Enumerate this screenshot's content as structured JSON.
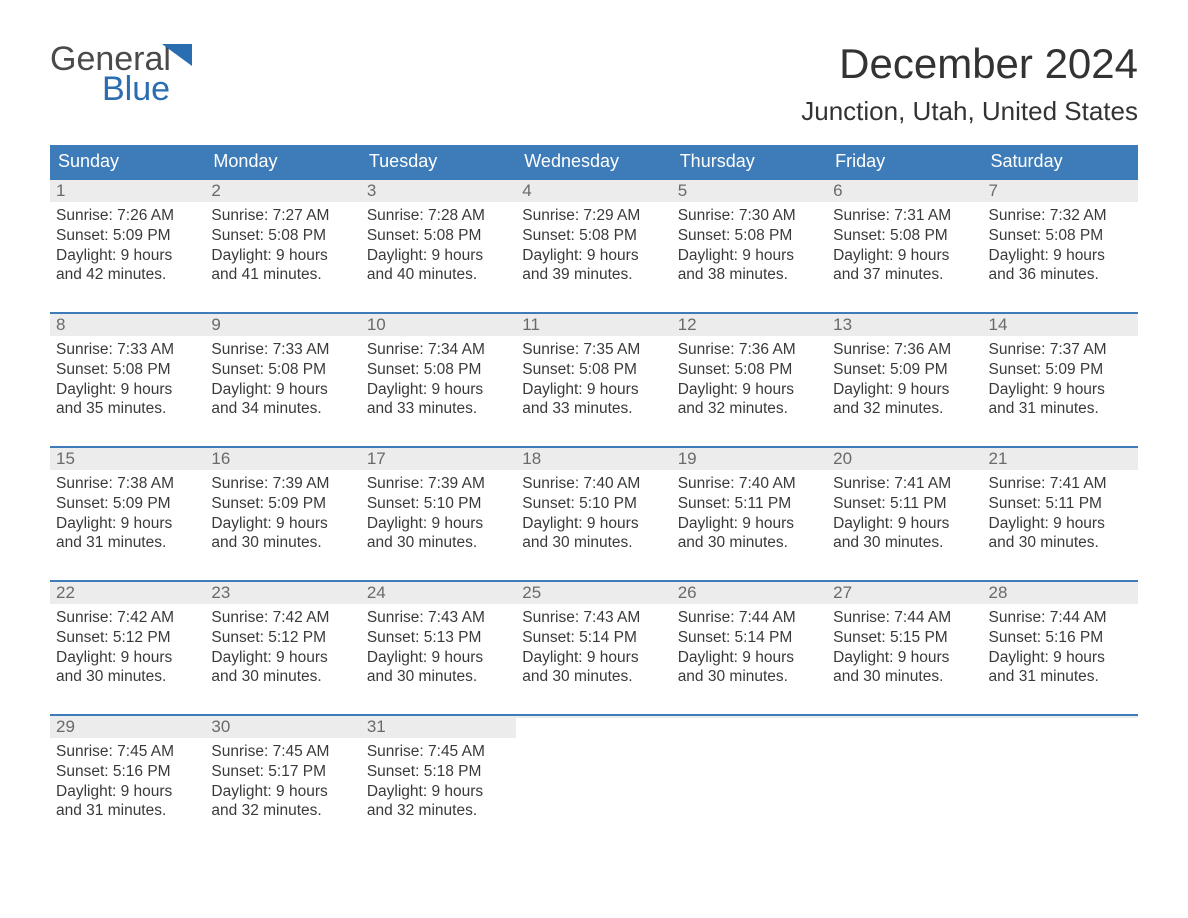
{
  "brand": {
    "part1": "General",
    "part2": "Blue",
    "icon_color": "#2a6db0"
  },
  "title": "December 2024",
  "location": "Junction, Utah, United States",
  "colors": {
    "header_bg": "#3d7cb8",
    "header_text": "#ffffff",
    "daynum_bg": "#ececec",
    "week_border": "#3d7cb8",
    "body_text": "#3a3a3a",
    "logo_blue": "#2a6db0"
  },
  "daysOfWeek": [
    "Sunday",
    "Monday",
    "Tuesday",
    "Wednesday",
    "Thursday",
    "Friday",
    "Saturday"
  ],
  "weeks": [
    [
      {
        "n": "1",
        "sunrise": "Sunrise: 7:26 AM",
        "sunset": "Sunset: 5:09 PM",
        "d1": "Daylight: 9 hours",
        "d2": "and 42 minutes."
      },
      {
        "n": "2",
        "sunrise": "Sunrise: 7:27 AM",
        "sunset": "Sunset: 5:08 PM",
        "d1": "Daylight: 9 hours",
        "d2": "and 41 minutes."
      },
      {
        "n": "3",
        "sunrise": "Sunrise: 7:28 AM",
        "sunset": "Sunset: 5:08 PM",
        "d1": "Daylight: 9 hours",
        "d2": "and 40 minutes."
      },
      {
        "n": "4",
        "sunrise": "Sunrise: 7:29 AM",
        "sunset": "Sunset: 5:08 PM",
        "d1": "Daylight: 9 hours",
        "d2": "and 39 minutes."
      },
      {
        "n": "5",
        "sunrise": "Sunrise: 7:30 AM",
        "sunset": "Sunset: 5:08 PM",
        "d1": "Daylight: 9 hours",
        "d2": "and 38 minutes."
      },
      {
        "n": "6",
        "sunrise": "Sunrise: 7:31 AM",
        "sunset": "Sunset: 5:08 PM",
        "d1": "Daylight: 9 hours",
        "d2": "and 37 minutes."
      },
      {
        "n": "7",
        "sunrise": "Sunrise: 7:32 AM",
        "sunset": "Sunset: 5:08 PM",
        "d1": "Daylight: 9 hours",
        "d2": "and 36 minutes."
      }
    ],
    [
      {
        "n": "8",
        "sunrise": "Sunrise: 7:33 AM",
        "sunset": "Sunset: 5:08 PM",
        "d1": "Daylight: 9 hours",
        "d2": "and 35 minutes."
      },
      {
        "n": "9",
        "sunrise": "Sunrise: 7:33 AM",
        "sunset": "Sunset: 5:08 PM",
        "d1": "Daylight: 9 hours",
        "d2": "and 34 minutes."
      },
      {
        "n": "10",
        "sunrise": "Sunrise: 7:34 AM",
        "sunset": "Sunset: 5:08 PM",
        "d1": "Daylight: 9 hours",
        "d2": "and 33 minutes."
      },
      {
        "n": "11",
        "sunrise": "Sunrise: 7:35 AM",
        "sunset": "Sunset: 5:08 PM",
        "d1": "Daylight: 9 hours",
        "d2": "and 33 minutes."
      },
      {
        "n": "12",
        "sunrise": "Sunrise: 7:36 AM",
        "sunset": "Sunset: 5:08 PM",
        "d1": "Daylight: 9 hours",
        "d2": "and 32 minutes."
      },
      {
        "n": "13",
        "sunrise": "Sunrise: 7:36 AM",
        "sunset": "Sunset: 5:09 PM",
        "d1": "Daylight: 9 hours",
        "d2": "and 32 minutes."
      },
      {
        "n": "14",
        "sunrise": "Sunrise: 7:37 AM",
        "sunset": "Sunset: 5:09 PM",
        "d1": "Daylight: 9 hours",
        "d2": "and 31 minutes."
      }
    ],
    [
      {
        "n": "15",
        "sunrise": "Sunrise: 7:38 AM",
        "sunset": "Sunset: 5:09 PM",
        "d1": "Daylight: 9 hours",
        "d2": "and 31 minutes."
      },
      {
        "n": "16",
        "sunrise": "Sunrise: 7:39 AM",
        "sunset": "Sunset: 5:09 PM",
        "d1": "Daylight: 9 hours",
        "d2": "and 30 minutes."
      },
      {
        "n": "17",
        "sunrise": "Sunrise: 7:39 AM",
        "sunset": "Sunset: 5:10 PM",
        "d1": "Daylight: 9 hours",
        "d2": "and 30 minutes."
      },
      {
        "n": "18",
        "sunrise": "Sunrise: 7:40 AM",
        "sunset": "Sunset: 5:10 PM",
        "d1": "Daylight: 9 hours",
        "d2": "and 30 minutes."
      },
      {
        "n": "19",
        "sunrise": "Sunrise: 7:40 AM",
        "sunset": "Sunset: 5:11 PM",
        "d1": "Daylight: 9 hours",
        "d2": "and 30 minutes."
      },
      {
        "n": "20",
        "sunrise": "Sunrise: 7:41 AM",
        "sunset": "Sunset: 5:11 PM",
        "d1": "Daylight: 9 hours",
        "d2": "and 30 minutes."
      },
      {
        "n": "21",
        "sunrise": "Sunrise: 7:41 AM",
        "sunset": "Sunset: 5:11 PM",
        "d1": "Daylight: 9 hours",
        "d2": "and 30 minutes."
      }
    ],
    [
      {
        "n": "22",
        "sunrise": "Sunrise: 7:42 AM",
        "sunset": "Sunset: 5:12 PM",
        "d1": "Daylight: 9 hours",
        "d2": "and 30 minutes."
      },
      {
        "n": "23",
        "sunrise": "Sunrise: 7:42 AM",
        "sunset": "Sunset: 5:12 PM",
        "d1": "Daylight: 9 hours",
        "d2": "and 30 minutes."
      },
      {
        "n": "24",
        "sunrise": "Sunrise: 7:43 AM",
        "sunset": "Sunset: 5:13 PM",
        "d1": "Daylight: 9 hours",
        "d2": "and 30 minutes."
      },
      {
        "n": "25",
        "sunrise": "Sunrise: 7:43 AM",
        "sunset": "Sunset: 5:14 PM",
        "d1": "Daylight: 9 hours",
        "d2": "and 30 minutes."
      },
      {
        "n": "26",
        "sunrise": "Sunrise: 7:44 AM",
        "sunset": "Sunset: 5:14 PM",
        "d1": "Daylight: 9 hours",
        "d2": "and 30 minutes."
      },
      {
        "n": "27",
        "sunrise": "Sunrise: 7:44 AM",
        "sunset": "Sunset: 5:15 PM",
        "d1": "Daylight: 9 hours",
        "d2": "and 30 minutes."
      },
      {
        "n": "28",
        "sunrise": "Sunrise: 7:44 AM",
        "sunset": "Sunset: 5:16 PM",
        "d1": "Daylight: 9 hours",
        "d2": "and 31 minutes."
      }
    ],
    [
      {
        "n": "29",
        "sunrise": "Sunrise: 7:45 AM",
        "sunset": "Sunset: 5:16 PM",
        "d1": "Daylight: 9 hours",
        "d2": "and 31 minutes."
      },
      {
        "n": "30",
        "sunrise": "Sunrise: 7:45 AM",
        "sunset": "Sunset: 5:17 PM",
        "d1": "Daylight: 9 hours",
        "d2": "and 32 minutes."
      },
      {
        "n": "31",
        "sunrise": "Sunrise: 7:45 AM",
        "sunset": "Sunset: 5:18 PM",
        "d1": "Daylight: 9 hours",
        "d2": "and 32 minutes."
      },
      null,
      null,
      null,
      null
    ]
  ]
}
